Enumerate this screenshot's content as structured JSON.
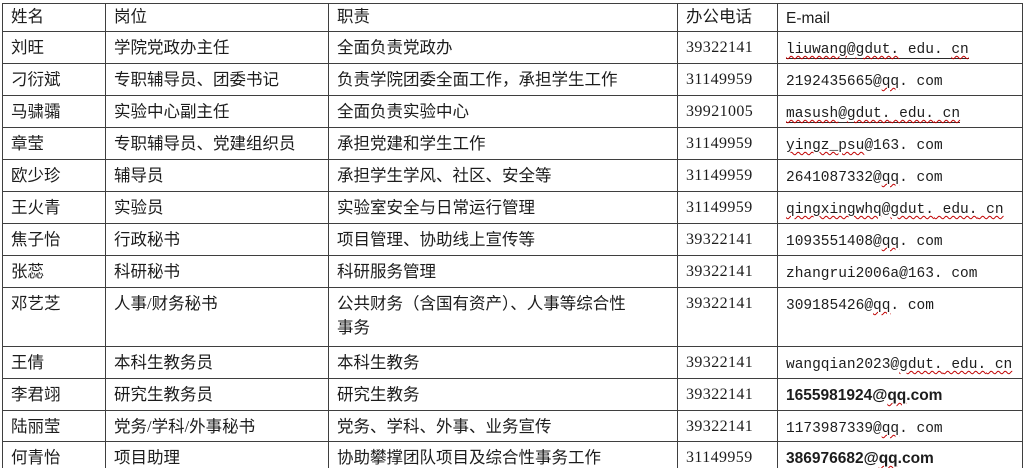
{
  "colors": {
    "background": "#ffffff",
    "border": "#3f3f3f",
    "text": "#1c1c1c",
    "squiggle": "#c00000"
  },
  "header": {
    "name": "姓名",
    "position": "岗位",
    "duty": "职责",
    "phone": "办公电话",
    "email": "E-mail"
  },
  "rows": [
    {
      "name": "刘旺",
      "position": "学院党政办主任",
      "duty": "全面负责党政办",
      "phone": "39322141",
      "email_font": "mono",
      "email_underline": true,
      "height": "normal",
      "email_parts": [
        {
          "t": "liuwang",
          "w": true
        },
        {
          "t": "@",
          "w": false
        },
        {
          "t": "gdut.",
          "w": true
        },
        {
          "t": " edu. ",
          "w": false
        },
        {
          "t": "cn",
          "w": true
        }
      ]
    },
    {
      "name": "刁衍斌",
      "position": "专职辅导员、团委书记",
      "duty": "负责学院团委全面工作，承担学生工作",
      "phone": "31149959",
      "email_font": "mono",
      "email_underline": false,
      "height": "normal",
      "email_parts": [
        {
          "t": "2192435665@",
          "w": false
        },
        {
          "t": "qq",
          "w": true
        },
        {
          "t": ". com",
          "w": false
        }
      ]
    },
    {
      "name": "马骕骦",
      "position": "实验中心副主任",
      "duty": "全面负责实验中心",
      "phone": "39921005",
      "email_font": "mono",
      "email_underline": true,
      "height": "normal",
      "email_parts": [
        {
          "t": "masush",
          "w": true
        },
        {
          "t": "@",
          "w": false
        },
        {
          "t": "gdut.",
          "w": true
        },
        {
          "t": " edu.",
          "w": true
        },
        {
          "t": " cn",
          "w": true
        }
      ]
    },
    {
      "name": "章莹",
      "position": "专职辅导员、党建组织员",
      "duty": "承担党建和学生工作",
      "phone": "31149959",
      "email_font": "mono",
      "email_underline": false,
      "height": "normal",
      "email_parts": [
        {
          "t": "yingz_psu",
          "w": true
        },
        {
          "t": "@163. com",
          "w": false
        }
      ]
    },
    {
      "name": "欧少珍",
      "position": "辅导员",
      "duty": "承担学生学风、社区、安全等",
      "phone": "31149959",
      "email_font": "mono",
      "email_underline": false,
      "height": "normal",
      "email_parts": [
        {
          "t": "2641087332@",
          "w": false
        },
        {
          "t": "qq",
          "w": true
        },
        {
          "t": ". com",
          "w": false
        }
      ]
    },
    {
      "name": "王火青",
      "position": "实验员",
      "duty": "实验室安全与日常运行管理",
      "phone": "31149959",
      "email_font": "mono",
      "email_underline": false,
      "height": "normal",
      "email_parts": [
        {
          "t": "qingxingwhq",
          "w": true
        },
        {
          "t": "@",
          "w": false
        },
        {
          "t": "gdut.",
          "w": true
        },
        {
          "t": " edu.",
          "w": true
        },
        {
          "t": " cn",
          "w": true
        }
      ]
    },
    {
      "name": "焦子怡",
      "position": "行政秘书",
      "duty": "项目管理、协助线上宣传等",
      "phone": "39322141",
      "email_font": "mono",
      "email_underline": false,
      "height": "normal",
      "email_parts": [
        {
          "t": "1093551408@",
          "w": false
        },
        {
          "t": "qq",
          "w": true
        },
        {
          "t": ". com",
          "w": false
        }
      ]
    },
    {
      "name": "张蕊",
      "position": "科研秘书",
      "duty": "科研服务管理",
      "phone": "39322141",
      "email_font": "mono",
      "email_underline": false,
      "height": "normal",
      "email_parts": [
        {
          "t": "zhangrui2006a@163. com",
          "w": false
        }
      ]
    },
    {
      "name": "邓艺芝",
      "position": "人事/财务秘书",
      "duty": "公共财务（含国有资产）、人事等综合性事务",
      "phone": "39322141",
      "email_font": "mono",
      "email_underline": false,
      "height": "tall",
      "email_parts": [
        {
          "t": "309185426@",
          "w": false
        },
        {
          "t": "qq",
          "w": true
        },
        {
          "t": ". com",
          "w": false
        }
      ]
    },
    {
      "name": "王倩",
      "position": "本科生教务员",
      "duty": "本科生教务",
      "phone": "39322141",
      "email_font": "mono",
      "email_underline": false,
      "height": "normal",
      "email_parts": [
        {
          "t": "wangqian2023@",
          "w": false
        },
        {
          "t": "gdut.",
          "w": true
        },
        {
          "t": " edu.",
          "w": true
        },
        {
          "t": " cn",
          "w": true
        }
      ]
    },
    {
      "name": "李君翊",
      "position": "研究生教务员",
      "duty": "研究生教务",
      "phone": "39322141",
      "email_font": "sans",
      "email_underline": false,
      "height": "normal",
      "email_parts": [
        {
          "t": "1655981924@",
          "w": false
        },
        {
          "t": "qq",
          "w": true
        },
        {
          "t": ".com",
          "w": false
        }
      ]
    },
    {
      "name": "陆丽莹",
      "position": "党务/学科/外事秘书",
      "duty": "党务、学科、外事、业务宣传",
      "phone": "39322141",
      "email_font": "mono",
      "email_underline": false,
      "height": "s27",
      "email_parts": [
        {
          "t": "1173987339@",
          "w": false
        },
        {
          "t": "qq",
          "w": true
        },
        {
          "t": ". com",
          "w": false
        }
      ]
    },
    {
      "name": "何青怡",
      "position": "项目助理",
      "duty": "协助攀撑团队项目及综合性事务工作",
      "phone": "31149959",
      "email_font": "sans",
      "email_underline": false,
      "height": "s26",
      "email_parts": [
        {
          "t": "386976682@",
          "w": false
        },
        {
          "t": "qq",
          "w": true
        },
        {
          "t": ".com",
          "w": false
        }
      ]
    }
  ]
}
